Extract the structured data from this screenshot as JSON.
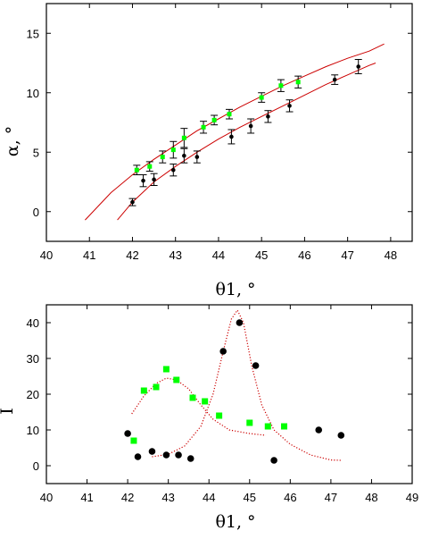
{
  "chart_data": [
    {
      "type": "scatter",
      "xlabel": "θ1, °",
      "ylabel": "α, °",
      "xlim": [
        40,
        48.5
      ],
      "ylim": [
        -2.5,
        17.5
      ],
      "xticks": [
        40,
        41,
        42,
        43,
        44,
        45,
        46,
        47,
        48
      ],
      "yticks": [
        0,
        5,
        10,
        15
      ],
      "series": [
        {
          "marker": "circle-errorbar",
          "color": "#000000",
          "points": [
            {
              "x": 42.0,
              "y": 0.8,
              "err": 0.3
            },
            {
              "x": 42.25,
              "y": 2.6,
              "err": 0.5
            },
            {
              "x": 42.5,
              "y": 2.7,
              "err": 0.5
            },
            {
              "x": 42.95,
              "y": 3.5,
              "err": 0.5
            },
            {
              "x": 43.2,
              "y": 4.7,
              "err": 0.6
            },
            {
              "x": 43.5,
              "y": 4.6,
              "err": 0.5
            },
            {
              "x": 44.3,
              "y": 6.3,
              "err": 0.6
            },
            {
              "x": 44.75,
              "y": 7.2,
              "err": 0.6
            },
            {
              "x": 45.15,
              "y": 8.0,
              "err": 0.5
            },
            {
              "x": 45.65,
              "y": 8.9,
              "err": 0.5
            },
            {
              "x": 46.7,
              "y": 11.1,
              "err": 0.4
            },
            {
              "x": 47.25,
              "y": 12.2,
              "err": 0.6
            }
          ]
        },
        {
          "marker": "square-errorbar",
          "color": "#00ff00",
          "points": [
            {
              "x": 42.1,
              "y": 3.5,
              "err": 0.4
            },
            {
              "x": 42.4,
              "y": 3.8,
              "err": 0.4
            },
            {
              "x": 42.7,
              "y": 4.6,
              "err": 0.5
            },
            {
              "x": 42.95,
              "y": 5.2,
              "err": 0.7
            },
            {
              "x": 43.2,
              "y": 6.2,
              "err": 0.8
            },
            {
              "x": 43.65,
              "y": 7.1,
              "err": 0.5
            },
            {
              "x": 43.9,
              "y": 7.7,
              "err": 0.4
            },
            {
              "x": 44.25,
              "y": 8.2,
              "err": 0.4
            },
            {
              "x": 45.0,
              "y": 9.6,
              "err": 0.4
            },
            {
              "x": 45.45,
              "y": 10.6,
              "err": 0.5
            },
            {
              "x": 45.85,
              "y": 10.9,
              "err": 0.5
            }
          ]
        },
        {
          "marker": "line",
          "color": "#cc0000",
          "points": [
            {
              "x": 40.9,
              "y": -0.7
            },
            {
              "x": 41.5,
              "y": 1.6
            },
            {
              "x": 42.0,
              "y": 3.1
            },
            {
              "x": 42.5,
              "y": 4.4
            },
            {
              "x": 43.0,
              "y": 5.6
            },
            {
              "x": 43.5,
              "y": 6.8
            },
            {
              "x": 44.0,
              "y": 7.8
            },
            {
              "x": 44.5,
              "y": 8.8
            },
            {
              "x": 45.0,
              "y": 9.7
            },
            {
              "x": 45.5,
              "y": 10.6
            },
            {
              "x": 46.0,
              "y": 11.4
            },
            {
              "x": 46.5,
              "y": 12.2
            },
            {
              "x": 47.0,
              "y": 12.9
            },
            {
              "x": 47.5,
              "y": 13.5
            },
            {
              "x": 47.85,
              "y": 14.1
            }
          ]
        },
        {
          "marker": "line",
          "color": "#cc0000",
          "points": [
            {
              "x": 41.65,
              "y": -0.7
            },
            {
              "x": 42.0,
              "y": 0.8
            },
            {
              "x": 42.5,
              "y": 2.5
            },
            {
              "x": 43.0,
              "y": 3.8
            },
            {
              "x": 43.5,
              "y": 5.0
            },
            {
              "x": 44.0,
              "y": 6.1
            },
            {
              "x": 44.5,
              "y": 7.1
            },
            {
              "x": 45.0,
              "y": 8.0
            },
            {
              "x": 45.5,
              "y": 8.9
            },
            {
              "x": 46.0,
              "y": 9.8
            },
            {
              "x": 46.5,
              "y": 10.7
            },
            {
              "x": 47.0,
              "y": 11.5
            },
            {
              "x": 47.5,
              "y": 12.3
            },
            {
              "x": 47.65,
              "y": 12.5
            }
          ]
        }
      ]
    },
    {
      "type": "scatter",
      "xlabel": "θ1, °",
      "ylabel": "I",
      "xlim": [
        40,
        49
      ],
      "ylim": [
        -5,
        45
      ],
      "xticks": [
        40,
        41,
        42,
        43,
        44,
        45,
        46,
        47,
        48,
        49
      ],
      "yticks": [
        0,
        10,
        20,
        30,
        40
      ],
      "series": [
        {
          "marker": "circle",
          "color": "#000000",
          "points": [
            {
              "x": 42.0,
              "y": 9
            },
            {
              "x": 42.25,
              "y": 2.5
            },
            {
              "x": 42.6,
              "y": 4
            },
            {
              "x": 42.95,
              "y": 3
            },
            {
              "x": 43.25,
              "y": 3
            },
            {
              "x": 43.55,
              "y": 2
            },
            {
              "x": 44.35,
              "y": 32
            },
            {
              "x": 44.75,
              "y": 40
            },
            {
              "x": 45.15,
              "y": 28
            },
            {
              "x": 45.6,
              "y": 1.5
            },
            {
              "x": 46.7,
              "y": 10
            },
            {
              "x": 47.25,
              "y": 8.5
            }
          ]
        },
        {
          "marker": "square",
          "color": "#00ff00",
          "points": [
            {
              "x": 42.15,
              "y": 7
            },
            {
              "x": 42.4,
              "y": 21
            },
            {
              "x": 42.7,
              "y": 22
            },
            {
              "x": 42.95,
              "y": 27
            },
            {
              "x": 43.2,
              "y": 24
            },
            {
              "x": 43.6,
              "y": 19
            },
            {
              "x": 43.9,
              "y": 18
            },
            {
              "x": 44.25,
              "y": 14
            },
            {
              "x": 45.0,
              "y": 12
            },
            {
              "x": 45.45,
              "y": 11
            },
            {
              "x": 45.85,
              "y": 11
            }
          ]
        },
        {
          "marker": "dotted-line",
          "color": "#cc0000",
          "points": [
            {
              "x": 42.1,
              "y": 14.5
            },
            {
              "x": 42.4,
              "y": 19.5
            },
            {
              "x": 42.7,
              "y": 23
            },
            {
              "x": 42.95,
              "y": 24.5
            },
            {
              "x": 43.2,
              "y": 24
            },
            {
              "x": 43.5,
              "y": 21.5
            },
            {
              "x": 43.8,
              "y": 17
            },
            {
              "x": 44.1,
              "y": 13
            },
            {
              "x": 44.5,
              "y": 10
            },
            {
              "x": 45.0,
              "y": 9
            },
            {
              "x": 45.4,
              "y": 8.5
            }
          ]
        },
        {
          "marker": "dotted-line",
          "color": "#cc0000",
          "points": [
            {
              "x": 42.6,
              "y": 2.5
            },
            {
              "x": 43.0,
              "y": 3.2
            },
            {
              "x": 43.4,
              "y": 5.5
            },
            {
              "x": 43.8,
              "y": 11
            },
            {
              "x": 44.1,
              "y": 20
            },
            {
              "x": 44.35,
              "y": 32
            },
            {
              "x": 44.55,
              "y": 41
            },
            {
              "x": 44.7,
              "y": 43.5
            },
            {
              "x": 44.85,
              "y": 40
            },
            {
              "x": 45.05,
              "y": 28
            },
            {
              "x": 45.3,
              "y": 17
            },
            {
              "x": 45.6,
              "y": 10
            },
            {
              "x": 46.0,
              "y": 6
            },
            {
              "x": 46.5,
              "y": 3
            },
            {
              "x": 47.0,
              "y": 1.6
            },
            {
              "x": 47.25,
              "y": 1.5
            }
          ]
        }
      ]
    }
  ]
}
